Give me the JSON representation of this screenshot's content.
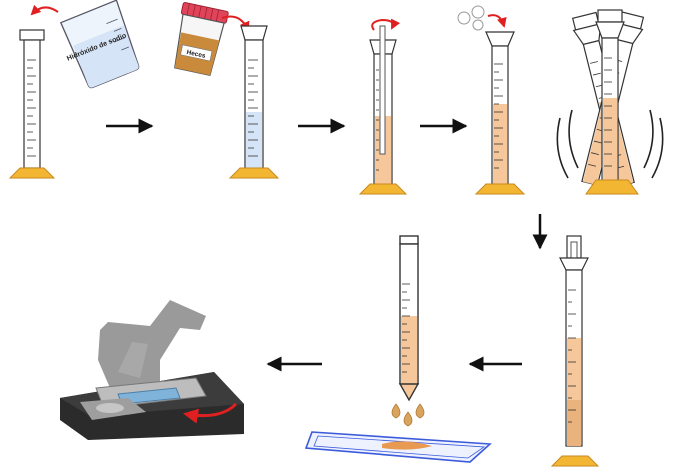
{
  "figure": {
    "labels": {
      "beaker": "Hidróxido de sodio",
      "container": "Heces"
    },
    "steps": [
      {
        "name": "add-sodium-hydroxide"
      },
      {
        "name": "add-stool-sample"
      },
      {
        "name": "stir-mixture"
      },
      {
        "name": "dissolve-and-wait"
      },
      {
        "name": "shake-cylinders"
      },
      {
        "name": "settle-sediment"
      },
      {
        "name": "pipette-sediment"
      },
      {
        "name": "microscope-observation"
      }
    ],
    "colors": {
      "base": "#f2b632",
      "liquid_blue": "#d6e4f7",
      "liquid_orange": "#f5c79a",
      "sample": "#c98a3c",
      "arrow": "#111111",
      "curved_arrow": "#e02020",
      "slide": "#3b5bdb"
    }
  }
}
